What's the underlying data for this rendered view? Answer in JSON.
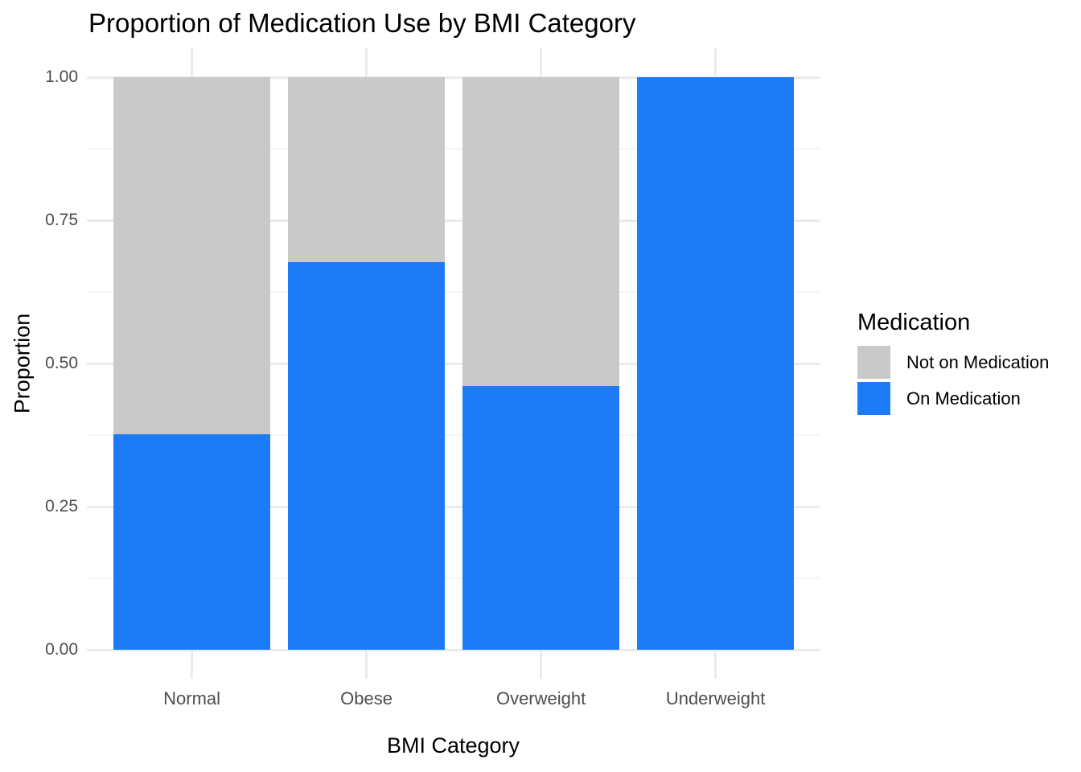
{
  "title": "Proportion of Medication Use by BMI Category",
  "x_axis": {
    "label": "BMI Category",
    "tick_labels": [
      "Normal",
      "Obese",
      "Overweight",
      "Underweight"
    ]
  },
  "y_axis": {
    "label": "Proportion",
    "tick_labels": [
      "0.00",
      "0.25",
      "0.50",
      "0.75",
      "1.00"
    ],
    "tick_values": [
      0,
      0.25,
      0.5,
      0.75,
      1.0
    ],
    "minor_tick_values": [
      0.125,
      0.375,
      0.625,
      0.875
    ]
  },
  "legend": {
    "title": "Medication",
    "position": "right",
    "items": [
      {
        "label": "Not on Medication",
        "color": "#C9C9C9"
      },
      {
        "label": "On Medication",
        "color": "#1E7BF7"
      }
    ]
  },
  "chart_data": {
    "type": "bar",
    "subtype": "stacked-proportion",
    "title": "Proportion of Medication Use by BMI Category",
    "xlabel": "BMI Category",
    "ylabel": "Proportion",
    "categories": [
      "Normal",
      "Obese",
      "Overweight",
      "Underweight"
    ],
    "series": [
      {
        "name": "On Medication",
        "color": "#1E7BF7",
        "values": [
          0.376,
          0.677,
          0.461,
          1.0
        ]
      },
      {
        "name": "Not on Medication",
        "color": "#C9C9C9",
        "values": [
          0.624,
          0.323,
          0.539,
          0.0
        ]
      }
    ],
    "ylim": [
      0,
      1
    ],
    "grid": "horizontal major and minor, vertical major at category centers",
    "legend_position": "right"
  },
  "style": {
    "background": "#FFFFFF",
    "grid_major": "#EBEBEB",
    "grid_minor": "#F5F5F5",
    "tick_text_color": "#4D4D4D",
    "text_color": "#000000",
    "on_medication_color": "#1E7BF7",
    "not_on_medication_color": "#C9C9C9"
  }
}
